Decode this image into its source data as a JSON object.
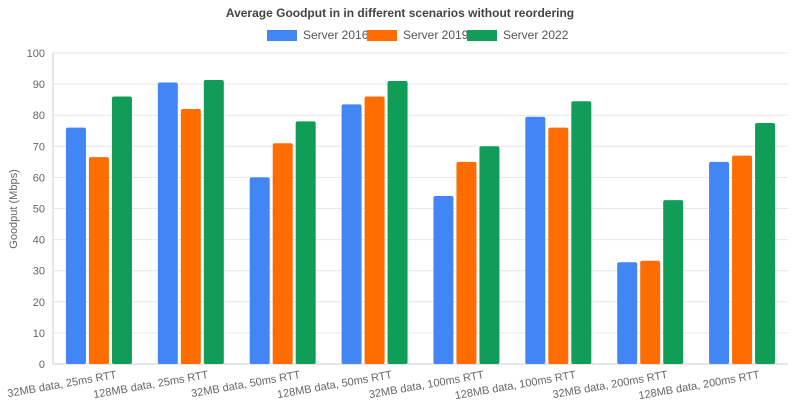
{
  "chart_data": {
    "type": "bar",
    "title": "Average Goodput in in different scenarios without reordering",
    "xlabel": "",
    "ylabel": "Goodput (Mbps)",
    "ylim": [
      0,
      100
    ],
    "yticks": [
      0,
      10,
      20,
      30,
      40,
      50,
      60,
      70,
      80,
      90,
      100
    ],
    "grid": true,
    "legend_position": "top-center",
    "categories": [
      "32MB data, 25ms RTT",
      "128MB data, 25ms RTT",
      "32MB data, 50ms RTT",
      "128MB data, 50ms RTT",
      "32MB data, 100ms RTT",
      "128MB data, 100ms RTT",
      "32MB data, 200ms RTT",
      "128MB data, 200ms RTT"
    ],
    "series": [
      {
        "name": "Server 2016",
        "color": "#4285f4",
        "values": [
          76,
          90.5,
          60,
          83.5,
          54,
          79.5,
          32.7,
          65
        ]
      },
      {
        "name": "Server 2019",
        "color": "#ff6d01",
        "values": [
          66.5,
          82,
          71,
          86,
          65,
          76,
          33.2,
          67
        ]
      },
      {
        "name": "Server 2022",
        "color": "#0f9d58",
        "values": [
          86,
          91.3,
          78,
          91,
          70,
          84.5,
          52.7,
          77.5
        ]
      }
    ]
  }
}
